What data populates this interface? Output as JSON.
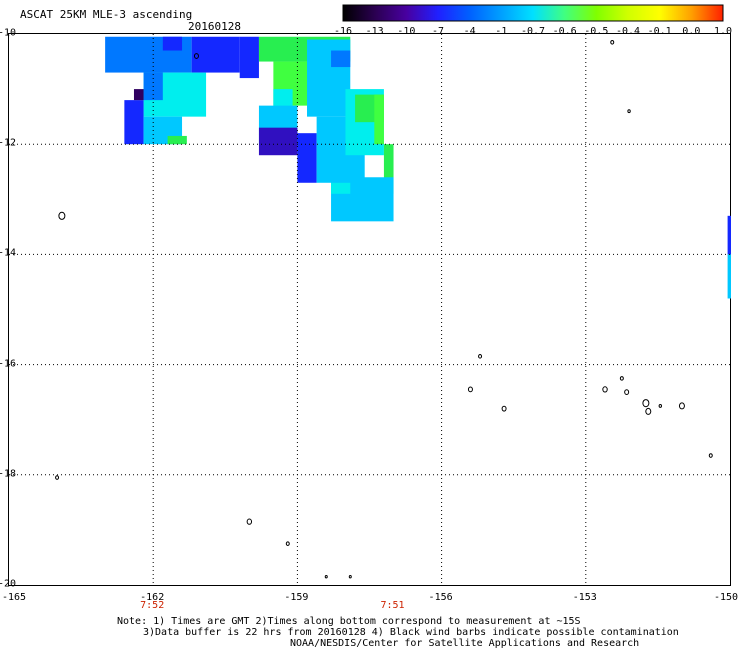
{
  "header": {
    "title": "ASCAT 25KM MLE-3 ascending",
    "date": "20160128"
  },
  "colorbar": {
    "labels": [
      "-16",
      "-13",
      "-10",
      "-7",
      "-4",
      "-1",
      "-0.7",
      "-0.6",
      "-0.5",
      "-0.4",
      "-0.1",
      "0.0",
      "1.0"
    ],
    "colors": [
      "#000000",
      "#2a0050",
      "#4800a0",
      "#2020ff",
      "#0060ff",
      "#00a0ff",
      "#00e0ff",
      "#40ff80",
      "#80ff00",
      "#d0ff00",
      "#ffff00",
      "#ffa000",
      "#ff2000"
    ]
  },
  "map": {
    "lon_range": [
      -165,
      -150
    ],
    "lat_range": [
      -20,
      -10
    ],
    "y_labels": [
      "-10",
      "-12",
      "-14",
      "-16",
      "-18",
      "-20"
    ],
    "x_labels": [
      "-165",
      "-162",
      "-159",
      "-156",
      "-153",
      "-150"
    ],
    "times": [
      {
        "label": "7:52",
        "lon": -162
      },
      {
        "label": "7:51",
        "lon": -157
      }
    ],
    "swath_colors": {
      "blue": "#1428ff",
      "azure": "#0078ff",
      "cyan": "#00eeee",
      "aqua": "#00c8ff",
      "green": "#28ee50",
      "lime": "#40ff40",
      "indigo": "#3010c0",
      "dark": "#300060"
    }
  },
  "notes": {
    "line1": "Note: 1) Times are GMT 2)Times along bottom correspond to measurement at ~15S",
    "line2": "3)Data buffer is 22 hrs from 20160128 4) Black wind barbs indicate possible contamination",
    "line3": "NOAA/NESDIS/Center for Satellite Applications and Research"
  }
}
